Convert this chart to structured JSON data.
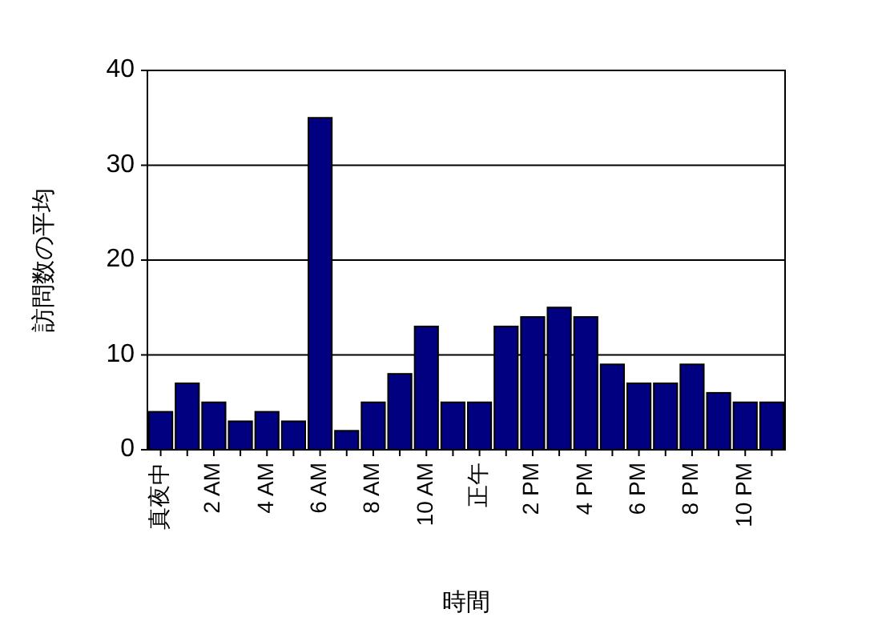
{
  "chart_data": {
    "type": "bar",
    "xlabel": "時間",
    "ylabel": "訪問数の平均",
    "categories": [
      "真夜中",
      null,
      "2 AM",
      null,
      "4 AM",
      null,
      "6 AM",
      null,
      "8 AM",
      null,
      "10 AM",
      null,
      "正午",
      null,
      "2 PM",
      null,
      "4 PM",
      null,
      "6 PM",
      null,
      "8 PM",
      null,
      "10 PM",
      null
    ],
    "values": [
      4,
      7,
      5,
      3,
      4,
      3,
      35,
      2,
      5,
      8,
      13,
      5,
      5,
      13,
      14,
      15,
      14,
      9,
      7,
      7,
      9,
      6,
      5,
      5
    ],
    "color": "#000080",
    "ylim": [
      0,
      40
    ],
    "yticks": [
      0,
      10,
      20,
      30,
      40
    ],
    "grid": "y"
  }
}
